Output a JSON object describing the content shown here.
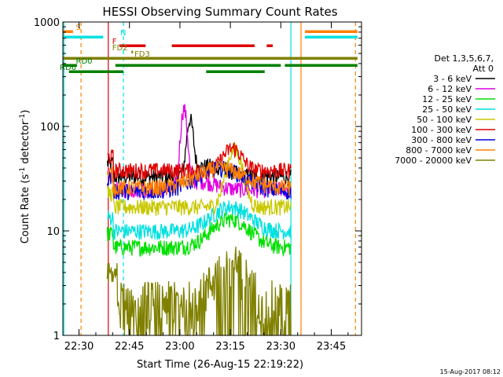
{
  "chart_data": {
    "type": "line",
    "title": "HESSI Observing Summary Count Rates",
    "xlabel": "Start Time (26-Aug-15 22:19:22)",
    "ylabel": "Count Rate (s",
    "ylabel_exp1": "-1",
    "ylabel_mid": " detector",
    "ylabel_exp2": "-1",
    "ylabel_end": ")",
    "yscale": "log",
    "ylim": [
      1,
      1000
    ],
    "xlim": [
      22.42,
      23.9
    ],
    "x_unit": "hours UT",
    "x_ticks": [
      {
        "value": 22.5,
        "label": "22:30"
      },
      {
        "value": 22.75,
        "label": "22:45"
      },
      {
        "value": 23.0,
        "label": "23:00"
      },
      {
        "value": 23.25,
        "label": "23:15"
      },
      {
        "value": 23.5,
        "label": "23:30"
      },
      {
        "value": 23.75,
        "label": "23:45"
      }
    ],
    "y_ticks": [
      {
        "value": 1,
        "label": "1"
      },
      {
        "value": 10,
        "label": "10"
      },
      {
        "value": 100,
        "label": "100"
      },
      {
        "value": 1000,
        "label": "1000"
      }
    ],
    "legend_header": [
      "Det 1,3,5,6,7,",
      "Att 0"
    ],
    "legend_position": "right",
    "timestamp": "15-Aug-2017 08:12",
    "series": [
      {
        "name": "3 - 6 keV",
        "color": "#000000",
        "shape": "bump",
        "base": 33,
        "peak": 42,
        "peak_t": 23.15,
        "width": 0.12,
        "flare": 80,
        "flare_t": 23.05
      },
      {
        "name": "6 - 12 keV",
        "color": "#e000e0",
        "shape": "bump",
        "base": 25,
        "peak": 30,
        "peak_t": 23.1,
        "width": 0.1,
        "flare": 120,
        "flare_t": 23.02
      },
      {
        "name": "12 - 25 keV",
        "color": "#00e000",
        "shape": "bump",
        "base": 7,
        "peak": 13,
        "peak_t": 23.25,
        "width": 0.12,
        "flare": 0,
        "flare_t": 23.0
      },
      {
        "name": "25 - 50 keV",
        "color": "#00e0e0",
        "shape": "bump",
        "base": 10,
        "peak": 17,
        "peak_t": 23.25,
        "width": 0.12,
        "flare": 0,
        "flare_t": 23.0
      },
      {
        "name": "50 - 100 keV",
        "color": "#c8c800",
        "shape": "bump",
        "base": 17,
        "peak": 60,
        "peak_t": 23.27,
        "width": 0.05,
        "flare": 0,
        "flare_t": 23.0
      },
      {
        "name": "100 - 300 keV",
        "color": "#e00000",
        "shape": "bump",
        "base": 38,
        "peak": 62,
        "peak_t": 23.26,
        "width": 0.06,
        "flare": 0,
        "flare_t": 23.0
      },
      {
        "name": "300 - 800 keV",
        "color": "#0000e0",
        "shape": "bump",
        "base": 24,
        "peak": 40,
        "peak_t": 23.2,
        "width": 0.15,
        "flare": 0,
        "flare_t": 23.0
      },
      {
        "name": "800 - 7000 keV",
        "color": "#ff8000",
        "shape": "bump",
        "base": 26,
        "peak": 40,
        "peak_t": 23.2,
        "width": 0.15,
        "flare": 0,
        "flare_t": 23.0
      },
      {
        "name": "7000 - 20000 keV",
        "color": "#808000",
        "shape": "noise",
        "base": 2.2,
        "peak": 5,
        "peak_t": 23.25,
        "width": 0.1,
        "flare": 0,
        "flare_t": 23.0
      }
    ],
    "data_range": [
      22.64,
      23.55
    ],
    "state_bars": [
      {
        "label": "S",
        "color": "#ff8000",
        "y": 40,
        "label_x": 22.5,
        "segments": [
          [
            22.42,
            22.47
          ],
          [
            23.62,
            23.88
          ]
        ]
      },
      {
        "label": "N",
        "color": "#00e0e0",
        "y": 47,
        "label_x": 22.72,
        "segments": [
          [
            22.42,
            22.62
          ],
          [
            23.62,
            23.88
          ]
        ]
      },
      {
        "label": "F",
        "color": "#e00000",
        "y": 58,
        "label_x": 22.68,
        "segments": [
          [
            22.7,
            22.83
          ],
          [
            22.96,
            23.37
          ],
          [
            23.43,
            23.46
          ]
        ]
      },
      {
        "label": "FD2",
        "color": "#808000",
        "y": 66,
        "label_x": 22.68,
        "segments": [
          [
            22.76,
            22.765
          ]
        ]
      },
      {
        "label": "FD3",
        "color": "#808000",
        "y": 74,
        "label_x": 22.79,
        "segments": [
          [
            22.42,
            23.88
          ]
        ]
      },
      {
        "label": "RD0",
        "color": "#008000",
        "y": 83,
        "label_x": 22.5,
        "segments": [
          [
            22.42,
            22.49
          ],
          [
            22.68,
            23.5
          ],
          [
            23.52,
            23.88
          ]
        ]
      },
      {
        "label": "RD6",
        "color": "#008000",
        "y": 91,
        "label_x": 22.42,
        "segments": [
          [
            22.45,
            22.72
          ],
          [
            23.13,
            23.42
          ]
        ]
      }
    ],
    "vlines": [
      {
        "x": 22.51,
        "color": "#ff8000",
        "dashed": true
      },
      {
        "x": 22.645,
        "color": "#e00000",
        "dashed": false
      },
      {
        "x": 22.72,
        "color": "#00e0e0",
        "dashed": true
      },
      {
        "x": 23.55,
        "color": "#00e0e0",
        "dashed": false
      },
      {
        "x": 23.6,
        "color": "#ff8000",
        "dashed": false
      },
      {
        "x": 23.87,
        "color": "#ff8000",
        "dashed": true
      },
      {
        "x": 22.425,
        "color": "#00e0e0",
        "dashed": false
      }
    ]
  }
}
